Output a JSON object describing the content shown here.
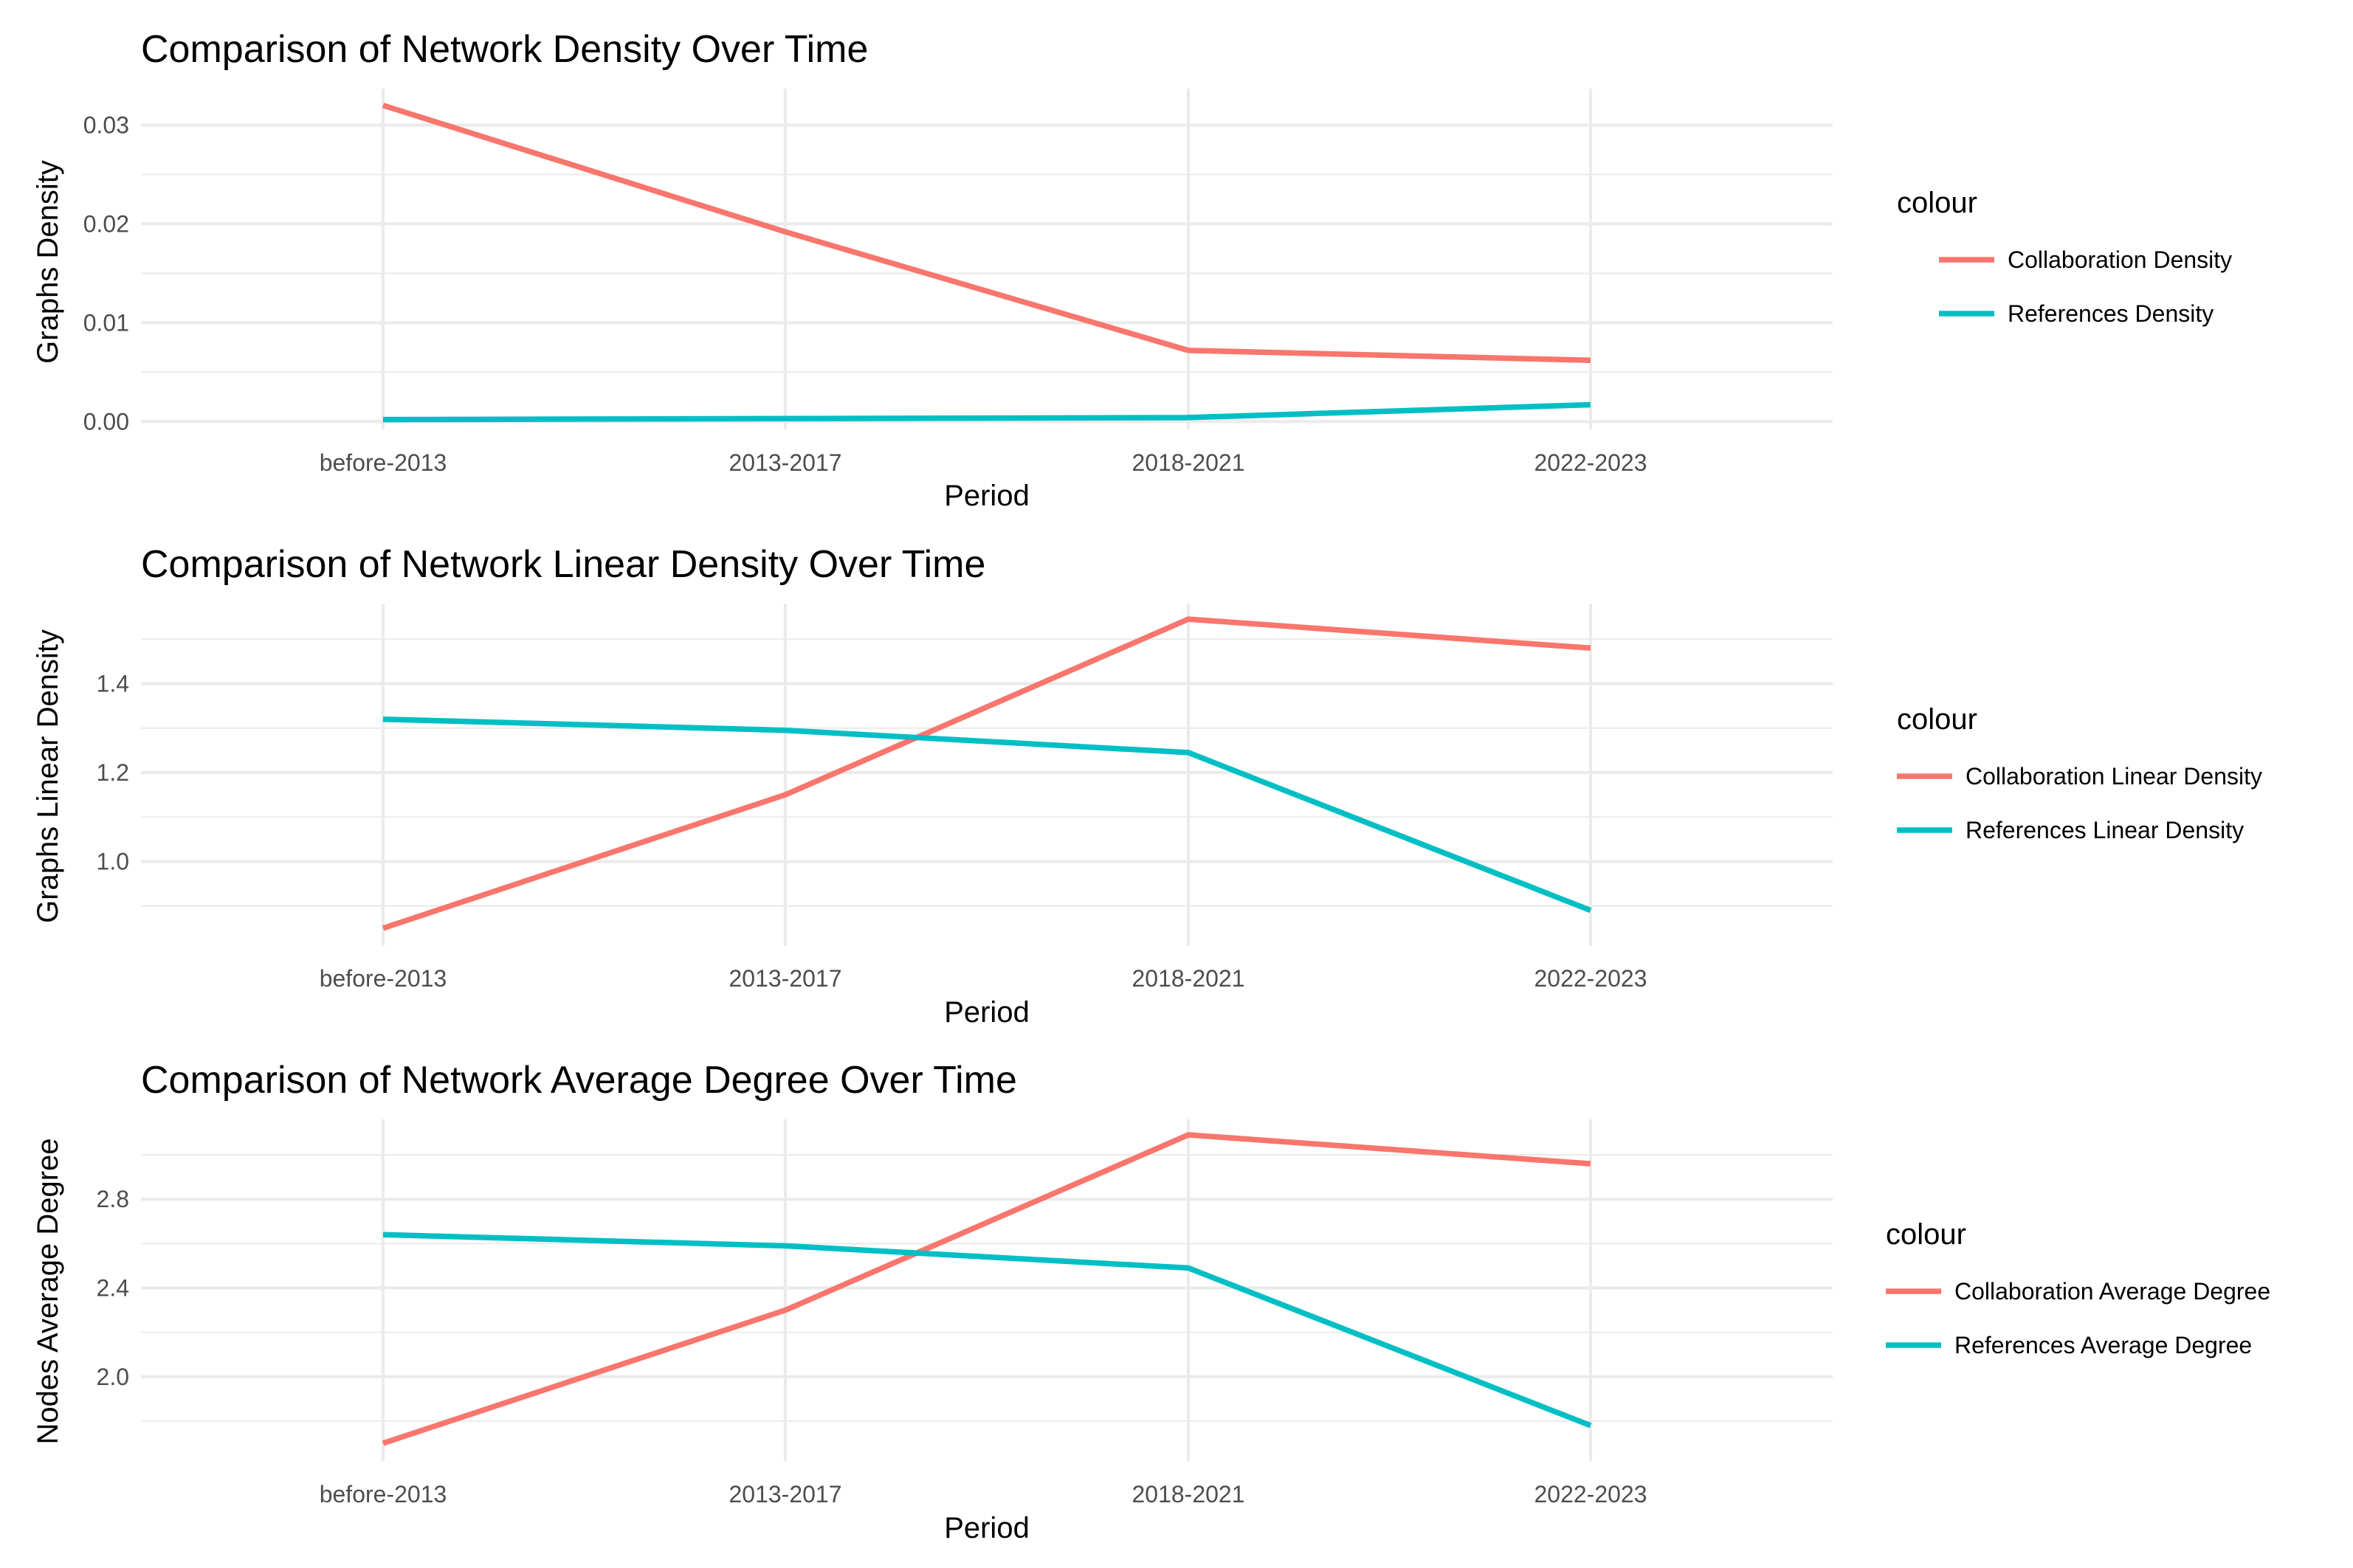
{
  "chart_data": [
    {
      "type": "line",
      "title": "Comparison of Network Density Over Time",
      "xlabel": "Period",
      "ylabel": "Graphs Density",
      "categories": [
        "before-2013",
        "2013-2017",
        "2018-2021",
        "2022-2023"
      ],
      "y_ticks": [
        0.0,
        0.01,
        0.02,
        0.03
      ],
      "y_tick_labels": [
        "0.00",
        "0.01",
        "0.02",
        "0.03"
      ],
      "ylim": [
        -0.0008,
        0.0337
      ],
      "grid": true,
      "legend": {
        "title": "colour",
        "placement": "right"
      },
      "series": [
        {
          "name": "Collaboration Density",
          "color": "#F8766D",
          "values": [
            0.032,
            0.0192,
            0.0072,
            0.0062
          ]
        },
        {
          "name": "References Density",
          "color": "#00BFC4",
          "values": [
            0.0002,
            0.0003,
            0.0004,
            0.0017
          ]
        }
      ]
    },
    {
      "type": "line",
      "title": "Comparison of Network Linear Density Over Time",
      "xlabel": "Period",
      "ylabel": "Graphs Linear Density",
      "categories": [
        "before-2013",
        "2013-2017",
        "2018-2021",
        "2022-2023"
      ],
      "y_ticks": [
        1.0,
        1.2,
        1.4
      ],
      "y_tick_labels": [
        "1.0",
        "1.2",
        "1.4"
      ],
      "ylim": [
        0.81,
        1.58
      ],
      "grid": true,
      "legend": {
        "title": "colour",
        "placement": "right"
      },
      "series": [
        {
          "name": "Collaboration Linear Density",
          "color": "#F8766D",
          "values": [
            0.85,
            1.15,
            1.545,
            1.48
          ]
        },
        {
          "name": "References Linear Density",
          "color": "#00BFC4",
          "values": [
            1.32,
            1.295,
            1.245,
            0.89
          ]
        }
      ]
    },
    {
      "type": "line",
      "title": "Comparison of Network Average Degree Over Time",
      "xlabel": "Period",
      "ylabel": "Nodes Average Degree",
      "categories": [
        "before-2013",
        "2013-2017",
        "2018-2021",
        "2022-2023"
      ],
      "y_ticks": [
        2.0,
        2.4,
        2.8
      ],
      "y_tick_labels": [
        "2.0",
        "2.4",
        "2.8"
      ],
      "ylim": [
        1.62,
        3.16
      ],
      "grid": true,
      "legend": {
        "title": "colour",
        "placement": "right"
      },
      "series": [
        {
          "name": "Collaboration Average Degree",
          "color": "#F8766D",
          "values": [
            1.7,
            2.3,
            3.09,
            2.96
          ]
        },
        {
          "name": "References Average Degree",
          "color": "#00BFC4",
          "values": [
            2.64,
            2.59,
            2.49,
            1.78
          ]
        }
      ]
    }
  ]
}
